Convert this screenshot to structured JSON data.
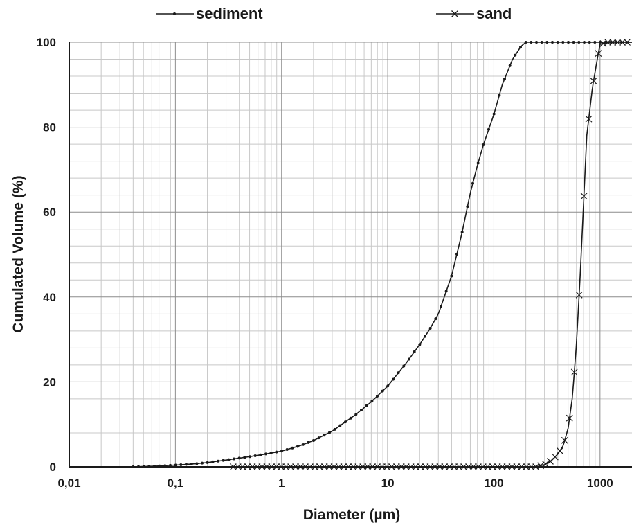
{
  "chart_data": {
    "type": "line",
    "xlabel": "Diameter (µm)",
    "ylabel": "Cumulated Volume (%)",
    "x_scale": "log",
    "xlim": [
      0.01,
      2000
    ],
    "ylim": [
      0,
      100
    ],
    "x_ticks": [
      0.01,
      0.1,
      1,
      10,
      100,
      1000
    ],
    "x_tick_labels": [
      "0,01",
      "0,1",
      "1",
      "10",
      "100",
      "1000"
    ],
    "y_ticks": [
      0,
      20,
      40,
      60,
      80,
      100
    ],
    "y_tick_labels": [
      "0",
      "20",
      "40",
      "60",
      "80",
      "100"
    ],
    "grid": true,
    "legend_position": "top",
    "series": [
      {
        "name": "sediment",
        "marker": "dot",
        "color": "#1a1a1a",
        "x": [
          0.04,
          0.07,
          0.1,
          0.15,
          0.2,
          0.3,
          0.5,
          0.7,
          1,
          1.5,
          2,
          3,
          5,
          7,
          10,
          15,
          20,
          25,
          30,
          40,
          50,
          60,
          70,
          80,
          100,
          120,
          150,
          180,
          200,
          300,
          500,
          1000,
          2000
        ],
        "y": [
          0,
          0.2,
          0.4,
          0.7,
          1,
          1.6,
          2.4,
          3,
          3.7,
          5,
          6.2,
          8.4,
          12.3,
          15.3,
          19,
          24.5,
          28.8,
          32.5,
          36,
          45,
          55,
          64.5,
          71,
          76,
          83,
          90,
          96,
          99,
          100,
          100,
          100,
          100,
          100
        ]
      },
      {
        "name": "sand",
        "marker": "x",
        "color": "#1a1a1a",
        "x": [
          0.35,
          1,
          10,
          100,
          250,
          300,
          350,
          400,
          450,
          500,
          550,
          600,
          650,
          700,
          750,
          850,
          950,
          1000,
          1200,
          1500,
          2000
        ],
        "y": [
          0,
          0,
          0,
          0,
          0,
          0.5,
          1.5,
          3,
          5,
          9,
          16.5,
          29,
          45,
          62,
          78,
          89.5,
          96.5,
          99.5,
          100,
          100,
          100
        ]
      }
    ]
  }
}
